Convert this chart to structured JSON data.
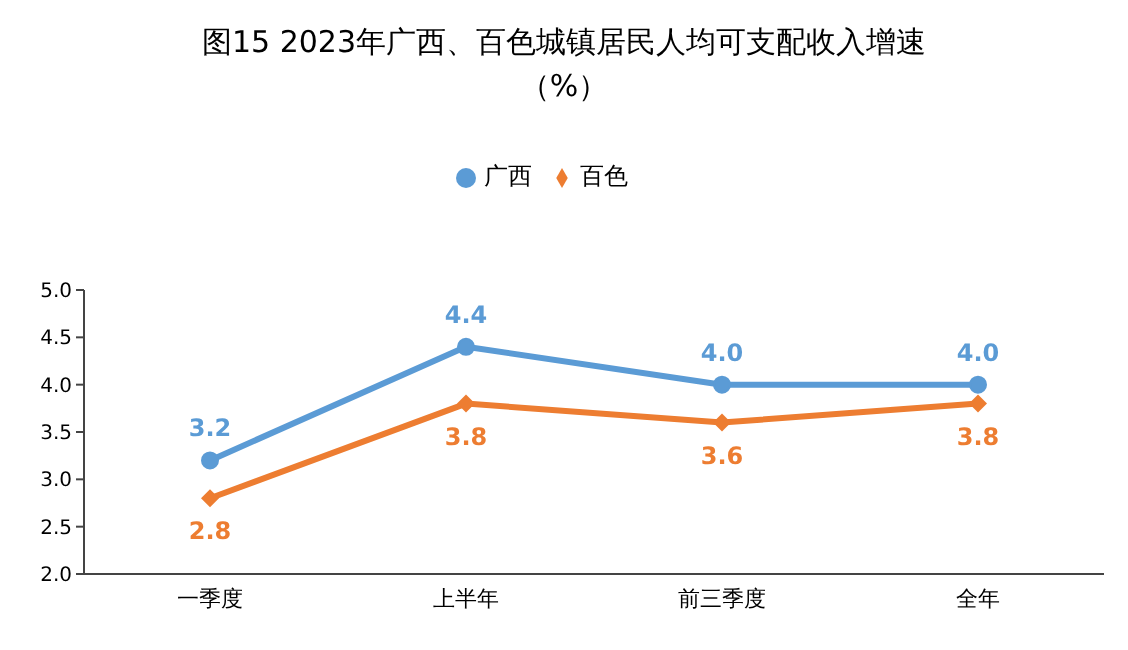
{
  "chart_data": {
    "type": "line",
    "title": "图15  2023年广西、百色城镇居民人均可支配收入增速",
    "subtitle": "（%）",
    "categories": [
      "一季度",
      "上半年",
      "前三季度",
      "全年"
    ],
    "series": [
      {
        "name": "广西",
        "color": "#5b9bd5",
        "values": [
          3.2,
          4.4,
          4.0,
          4.0
        ],
        "value_labels": [
          "3.2",
          "4.4",
          "4.0",
          "4.0"
        ],
        "marker": "circle"
      },
      {
        "name": "百色",
        "color": "#ed7d31",
        "values": [
          2.8,
          3.8,
          3.6,
          3.8
        ],
        "value_labels": [
          "2.8",
          "3.8",
          "3.6",
          "3.8"
        ],
        "marker": "diamond"
      }
    ],
    "ylim": [
      2.0,
      5.0
    ],
    "yticks": [
      {
        "value": 2.0,
        "label": "2.0"
      },
      {
        "value": 2.5,
        "label": "2.5"
      },
      {
        "value": 3.0,
        "label": "3.0"
      },
      {
        "value": 3.5,
        "label": "3.5"
      },
      {
        "value": 4.0,
        "label": "4.0"
      },
      {
        "value": 4.5,
        "label": "4.5"
      },
      {
        "value": 5.0,
        "label": "5.0"
      }
    ],
    "legend": "top",
    "grid": false,
    "line_style": "solid"
  }
}
